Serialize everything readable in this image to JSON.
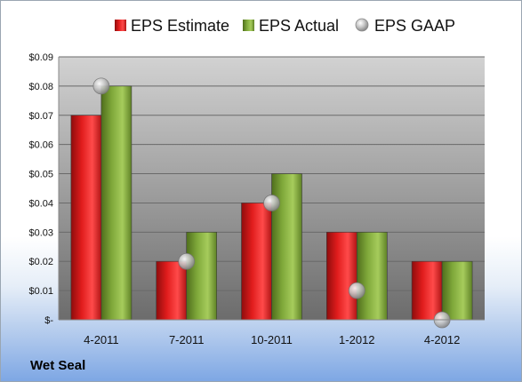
{
  "chart_data": {
    "type": "bar",
    "title": "",
    "xlabel": "",
    "ylabel": "",
    "categories": [
      "4-2011",
      "7-2011",
      "10-2011",
      "1-2012",
      "4-2012"
    ],
    "series": [
      {
        "name": "EPS Estimate",
        "kind": "bar",
        "color": "#e01c1c",
        "values": [
          0.07,
          0.02,
          0.04,
          0.03,
          0.02
        ]
      },
      {
        "name": "EPS Actual",
        "kind": "bar",
        "color": "#7fa83a",
        "values": [
          0.08,
          0.03,
          0.05,
          0.03,
          0.02
        ]
      },
      {
        "name": "EPS GAAP",
        "kind": "marker",
        "color": "#a8a8a8",
        "values": [
          0.08,
          0.02,
          0.04,
          0.01,
          0.0
        ]
      }
    ],
    "yticks": [
      "$-",
      "$0.01",
      "$0.02",
      "$0.03",
      "$0.04",
      "$0.05",
      "$0.06",
      "$0.07",
      "$0.08",
      "$0.09"
    ],
    "ylim": [
      0,
      0.09
    ],
    "grid": true,
    "legend": "top"
  },
  "footer": {
    "company": "Wet Seal"
  }
}
